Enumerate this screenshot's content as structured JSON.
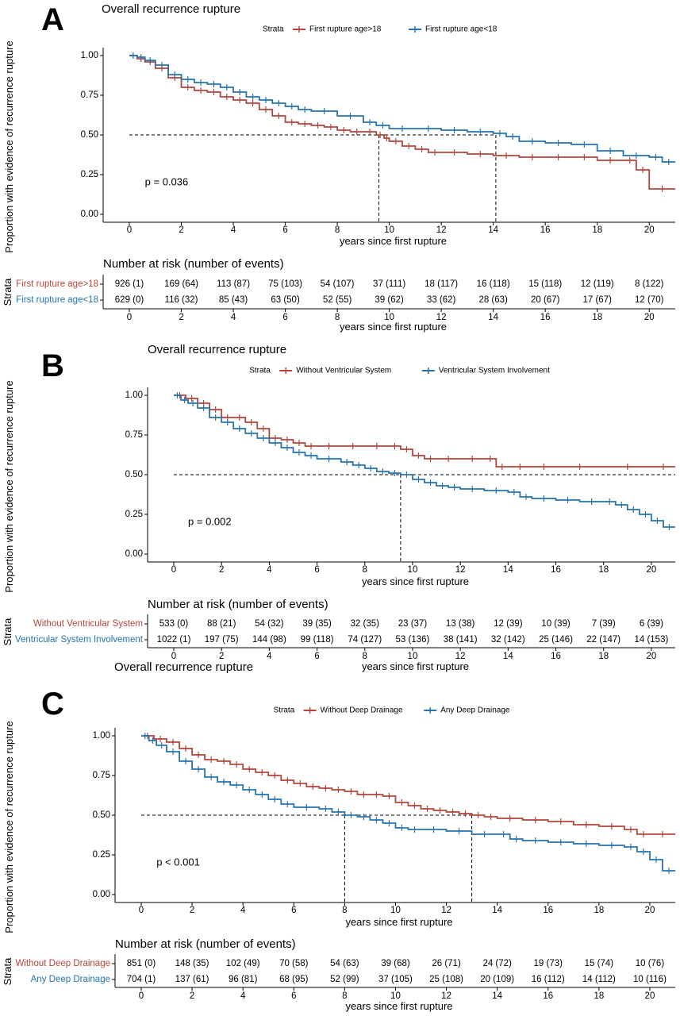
{
  "colors": {
    "red": "#B5443A",
    "blue": "#2673B3"
  },
  "chart_data": [
    {
      "type": "line",
      "letter": "A",
      "title": "Overall recurrence rupture",
      "xlabel": "years since first rupture",
      "ylabel": "Proportion with evidence of recurrence rupture",
      "xlim": [
        -1,
        21
      ],
      "ylim": [
        -0.04,
        1.04
      ],
      "x_ticks": [
        "0",
        "2",
        "4",
        "6",
        "8",
        "10",
        "12",
        "14",
        "16",
        "18",
        "20"
      ],
      "y_ticks": [
        "0.00",
        "0.25",
        "0.50",
        "0.75",
        "1.00"
      ],
      "legend_title": "Strata",
      "legend_position": "top",
      "p_value": "p = 0.036",
      "median_lines": [
        9.6,
        14.1
      ],
      "series": [
        {
          "name": "First rupture age>18",
          "color": "red",
          "x": [
            0,
            0.3,
            0.6,
            1,
            1.5,
            2,
            2.5,
            3,
            3.5,
            4,
            4.5,
            5,
            5.5,
            6,
            6.5,
            7,
            7.5,
            8,
            8.5,
            9,
            9.5,
            9.8,
            10,
            10.5,
            11,
            11.5,
            12,
            13,
            14,
            15,
            16,
            17,
            18,
            19,
            19.5,
            20,
            21
          ],
          "y": [
            1.0,
            0.98,
            0.96,
            0.92,
            0.86,
            0.8,
            0.78,
            0.77,
            0.74,
            0.72,
            0.7,
            0.66,
            0.62,
            0.58,
            0.57,
            0.56,
            0.55,
            0.53,
            0.52,
            0.52,
            0.5,
            0.48,
            0.46,
            0.43,
            0.41,
            0.39,
            0.39,
            0.38,
            0.37,
            0.36,
            0.36,
            0.36,
            0.34,
            0.34,
            0.28,
            0.16,
            0.16
          ]
        },
        {
          "name": "First rupture age<18",
          "color": "blue",
          "x": [
            0,
            0.3,
            0.6,
            1,
            1.5,
            2,
            2.5,
            3,
            3.5,
            4,
            4.5,
            5,
            5.5,
            6,
            6.5,
            7,
            8,
            9,
            9.5,
            10,
            11,
            12,
            13,
            14,
            14.5,
            15,
            16,
            17,
            18,
            19,
            20,
            20.5,
            21
          ],
          "y": [
            1.0,
            0.99,
            0.97,
            0.94,
            0.88,
            0.85,
            0.83,
            0.82,
            0.8,
            0.77,
            0.74,
            0.72,
            0.7,
            0.68,
            0.66,
            0.65,
            0.62,
            0.58,
            0.56,
            0.54,
            0.54,
            0.53,
            0.52,
            0.51,
            0.49,
            0.46,
            0.45,
            0.44,
            0.4,
            0.37,
            0.36,
            0.33,
            0.33
          ]
        }
      ],
      "risk_table": {
        "title": "Number at risk (number of events)",
        "ylabel": "Strata",
        "rows": [
          {
            "label": "First rupture age>18",
            "color": "red",
            "cells": [
              "926 (1)",
              "169 (64)",
              "113 (87)",
              "75 (103)",
              "54 (107)",
              "37 (111)",
              "18 (117)",
              "16 (118)",
              "15 (118)",
              "12 (119)",
              "8 (122)"
            ]
          },
          {
            "label": "First rupture age<18",
            "color": "blue",
            "cells": [
              "629 (0)",
              "116 (32)",
              "85 (43)",
              "63 (50)",
              "52 (55)",
              "39 (62)",
              "33 (62)",
              "28 (63)",
              "20 (67)",
              "17 (67)",
              "12 (70)"
            ]
          }
        ],
        "x_ticks": [
          "0",
          "2",
          "4",
          "6",
          "8",
          "10",
          "12",
          "14",
          "16",
          "18",
          "20"
        ],
        "xlabel": "years since first rupture"
      }
    },
    {
      "type": "line",
      "letter": "B",
      "title": "Overall recurrence rupture",
      "xlabel": "years since first rupture",
      "ylabel": "Proportion with evidence of recurrence rupture",
      "xlim": [
        -1,
        21
      ],
      "ylim": [
        -0.04,
        1.04
      ],
      "x_ticks": [
        "0",
        "2",
        "4",
        "6",
        "8",
        "10",
        "12",
        "14",
        "16",
        "18",
        "20"
      ],
      "y_ticks": [
        "0.00",
        "0.25",
        "0.50",
        "0.75",
        "1.00"
      ],
      "legend_title": "Strata",
      "legend_position": "top",
      "p_value": "p = 0.002",
      "median_lines": [
        9.5
      ],
      "series": [
        {
          "name": "Without Ventricular System",
          "color": "red",
          "x": [
            0,
            0.5,
            1,
            1.5,
            2,
            2.5,
            3,
            3.5,
            4,
            4.5,
            5,
            5.5,
            6,
            7,
            8,
            9,
            9.5,
            10,
            10.5,
            11,
            12,
            13,
            13.5,
            14,
            15,
            16,
            18,
            20,
            21
          ],
          "y": [
            1.0,
            0.98,
            0.95,
            0.91,
            0.86,
            0.86,
            0.83,
            0.79,
            0.73,
            0.72,
            0.7,
            0.68,
            0.68,
            0.68,
            0.68,
            0.68,
            0.66,
            0.62,
            0.6,
            0.6,
            0.6,
            0.6,
            0.55,
            0.55,
            0.55,
            0.55,
            0.55,
            0.55,
            0.55
          ]
        },
        {
          "name": "Ventricular System Involvement",
          "color": "blue",
          "x": [
            0,
            0.3,
            0.6,
            1,
            1.5,
            2,
            2.5,
            3,
            3.5,
            4,
            4.5,
            5,
            5.5,
            6,
            7,
            7.5,
            8,
            8.5,
            9,
            9.5,
            10,
            10.5,
            11,
            11.5,
            12,
            13,
            14,
            14.5,
            15,
            16,
            17,
            18,
            18.5,
            19,
            19.5,
            20,
            20.5,
            21
          ],
          "y": [
            1.0,
            0.97,
            0.95,
            0.92,
            0.86,
            0.83,
            0.79,
            0.76,
            0.73,
            0.7,
            0.67,
            0.64,
            0.62,
            0.6,
            0.58,
            0.56,
            0.54,
            0.52,
            0.51,
            0.5,
            0.47,
            0.45,
            0.43,
            0.42,
            0.41,
            0.4,
            0.39,
            0.36,
            0.35,
            0.34,
            0.33,
            0.33,
            0.31,
            0.28,
            0.25,
            0.21,
            0.17,
            0.17
          ]
        }
      ],
      "risk_table": {
        "title": "Number at risk (number of events)",
        "ylabel": "Strata",
        "rows": [
          {
            "label": "Without Ventricular System",
            "color": "red",
            "cells": [
              "533 (0)",
              "88 (21)",
              "54 (32)",
              "39 (35)",
              "32 (35)",
              "23 (37)",
              "13 (38)",
              "12 (39)",
              "10 (39)",
              "7 (39)",
              "6 (39)"
            ]
          },
          {
            "label": "Ventricular System Involvement",
            "color": "blue",
            "cells": [
              "1022 (1)",
              "197 (75)",
              "144 (98)",
              "99 (118)",
              "74 (127)",
              "53 (136)",
              "38 (141)",
              "32 (142)",
              "25 (146)",
              "22 (147)",
              "14 (153)"
            ]
          }
        ],
        "x_ticks": [
          "0",
          "2",
          "4",
          "6",
          "8",
          "10",
          "12",
          "14",
          "16",
          "18",
          "20"
        ],
        "xlabel": "years since first rupture"
      }
    },
    {
      "type": "line",
      "letter": "C",
      "title": "Overall recurrence rupture",
      "xlabel": "years since first rupture",
      "ylabel": "Proportion with evidence of recurrence rupture",
      "xlim": [
        -1,
        21
      ],
      "ylim": [
        -0.04,
        1.04
      ],
      "x_ticks": [
        "0",
        "2",
        "4",
        "6",
        "8",
        "10",
        "12",
        "14",
        "16",
        "18",
        "20"
      ],
      "y_ticks": [
        "0.00",
        "0.25",
        "0.50",
        "0.75",
        "1.00"
      ],
      "legend_title": "Strata",
      "legend_position": "top",
      "p_value": "p < 0.001",
      "median_lines": [
        8,
        13
      ],
      "series": [
        {
          "name": "Without Deep Drainage",
          "color": "red",
          "x": [
            0,
            0.5,
            1,
            1.5,
            2,
            2.5,
            3,
            3.5,
            4,
            4.5,
            5,
            5.5,
            6,
            6.5,
            7,
            7.5,
            8,
            8.5,
            9,
            9.5,
            10,
            10.5,
            11,
            11.5,
            12,
            12.5,
            13,
            13.5,
            14,
            15,
            16,
            17,
            18,
            19,
            19.5,
            20,
            21
          ],
          "y": [
            1.0,
            0.98,
            0.96,
            0.92,
            0.88,
            0.85,
            0.84,
            0.82,
            0.79,
            0.77,
            0.75,
            0.72,
            0.7,
            0.68,
            0.67,
            0.66,
            0.65,
            0.63,
            0.63,
            0.62,
            0.58,
            0.56,
            0.54,
            0.53,
            0.52,
            0.51,
            0.5,
            0.49,
            0.48,
            0.47,
            0.46,
            0.44,
            0.43,
            0.41,
            0.38,
            0.38,
            0.38
          ]
        },
        {
          "name": "Any Deep Drainage",
          "color": "blue",
          "x": [
            0,
            0.3,
            0.6,
            1,
            1.5,
            2,
            2.5,
            3,
            3.5,
            4,
            4.5,
            5,
            5.5,
            6,
            7,
            7.5,
            8,
            8.5,
            9,
            9.5,
            10,
            10.5,
            11,
            12,
            13,
            14,
            14.5,
            15,
            16,
            17,
            18,
            19,
            19.5,
            20,
            20.5,
            21
          ],
          "y": [
            1.0,
            0.97,
            0.94,
            0.9,
            0.84,
            0.79,
            0.74,
            0.71,
            0.69,
            0.66,
            0.63,
            0.6,
            0.57,
            0.55,
            0.54,
            0.52,
            0.5,
            0.49,
            0.47,
            0.45,
            0.42,
            0.41,
            0.41,
            0.4,
            0.38,
            0.38,
            0.35,
            0.34,
            0.33,
            0.32,
            0.31,
            0.3,
            0.27,
            0.22,
            0.15,
            0.15
          ]
        }
      ],
      "risk_table": {
        "title": "Number at risk (number of events)",
        "ylabel": "Strata",
        "rows": [
          {
            "label": "Without Deep Drainage",
            "color": "red",
            "cells": [
              "851 (0)",
              "148 (35)",
              "102 (49)",
              "70 (58)",
              "54 (63)",
              "39 (68)",
              "26 (71)",
              "24 (72)",
              "19 (73)",
              "15 (74)",
              "10 (76)"
            ]
          },
          {
            "label": "Any Deep Drainage",
            "color": "blue",
            "cells": [
              "704 (1)",
              "137 (61)",
              "96 (81)",
              "68 (95)",
              "52 (99)",
              "37 (105)",
              "25 (108)",
              "20 (109)",
              "16 (112)",
              "14 (112)",
              "10 (116)"
            ]
          }
        ],
        "x_ticks": [
          "0",
          "2",
          "4",
          "6",
          "8",
          "10",
          "12",
          "14",
          "16",
          "18",
          "20"
        ],
        "xlabel": "years since first rupture"
      }
    }
  ]
}
